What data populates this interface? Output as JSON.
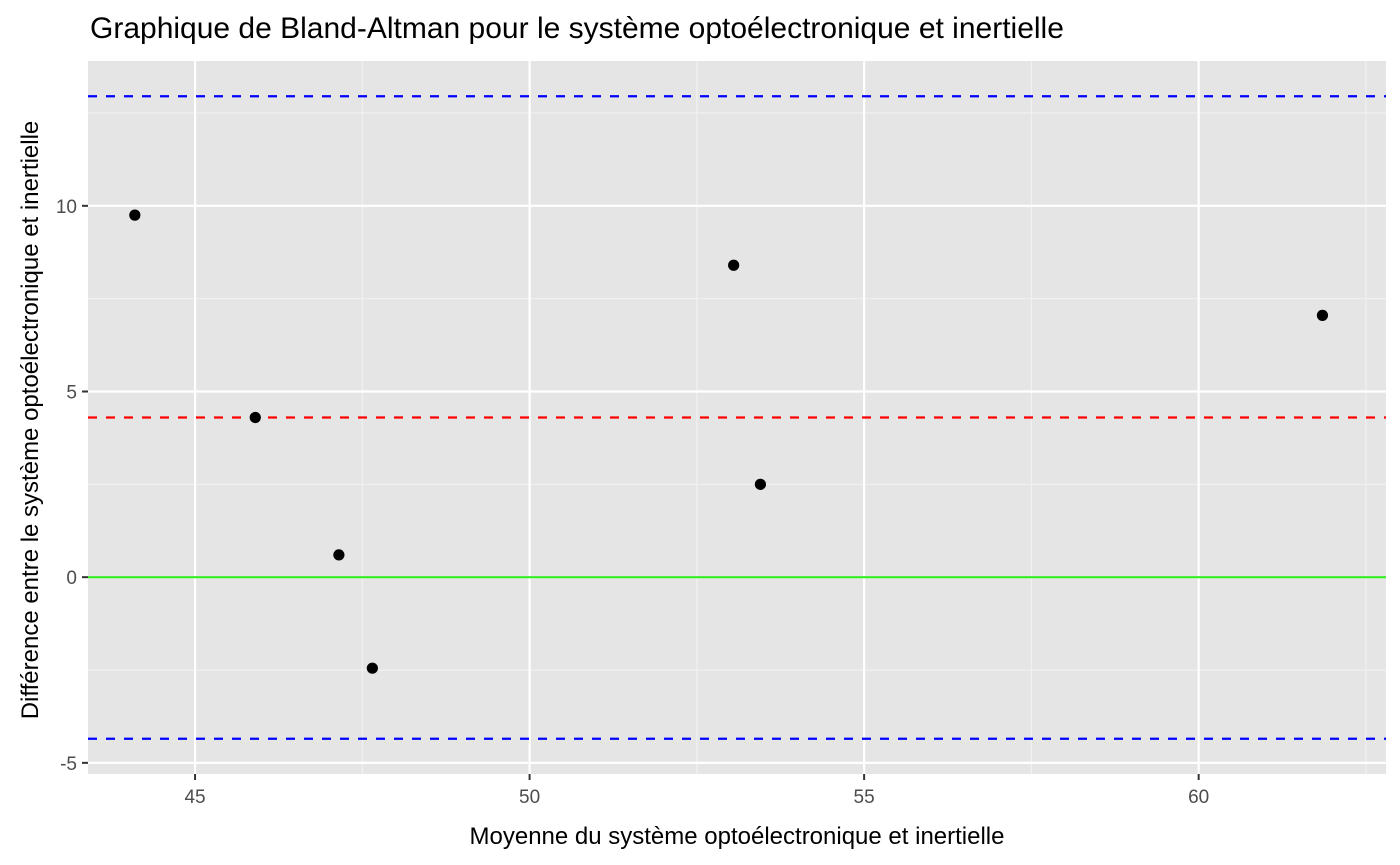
{
  "chart_data": {
    "type": "scatter",
    "title": "Graphique de Bland-Altman pour le système optoélectronique et inertielle",
    "xlabel": "Moyenne du système optoélectronique et inertielle",
    "ylabel": "Différence entre le système optoélectronique et inertielle",
    "xlim": [
      43.4,
      62.8
    ],
    "ylim": [
      -5.3,
      13.9
    ],
    "xticks": [
      45,
      50,
      55,
      60
    ],
    "yticks": [
      -5,
      0,
      5,
      10
    ],
    "xtick_labels": [
      "45",
      "50",
      "55",
      "60"
    ],
    "ytick_labels": [
      "-5",
      "0",
      "5",
      "10"
    ],
    "grid": true,
    "background": "#e5e5e5",
    "points": [
      {
        "x": 44.1,
        "y": 9.75
      },
      {
        "x": 45.9,
        "y": 4.3
      },
      {
        "x": 47.15,
        "y": 0.6
      },
      {
        "x": 47.65,
        "y": -2.45
      },
      {
        "x": 53.05,
        "y": 8.4
      },
      {
        "x": 53.45,
        "y": 2.5
      },
      {
        "x": 61.85,
        "y": 7.05
      }
    ],
    "point_color": "#000000",
    "hlines": [
      {
        "y": 12.95,
        "color": "#0000ff",
        "style": "dashed",
        "role": "upper limit of agreement"
      },
      {
        "y": 4.3,
        "color": "#ff0000",
        "style": "dashed",
        "role": "mean difference"
      },
      {
        "y": 0,
        "color": "#33ee22",
        "style": "solid",
        "role": "zero line"
      },
      {
        "y": -4.35,
        "color": "#0000ff",
        "style": "dashed",
        "role": "lower limit of agreement"
      }
    ]
  }
}
